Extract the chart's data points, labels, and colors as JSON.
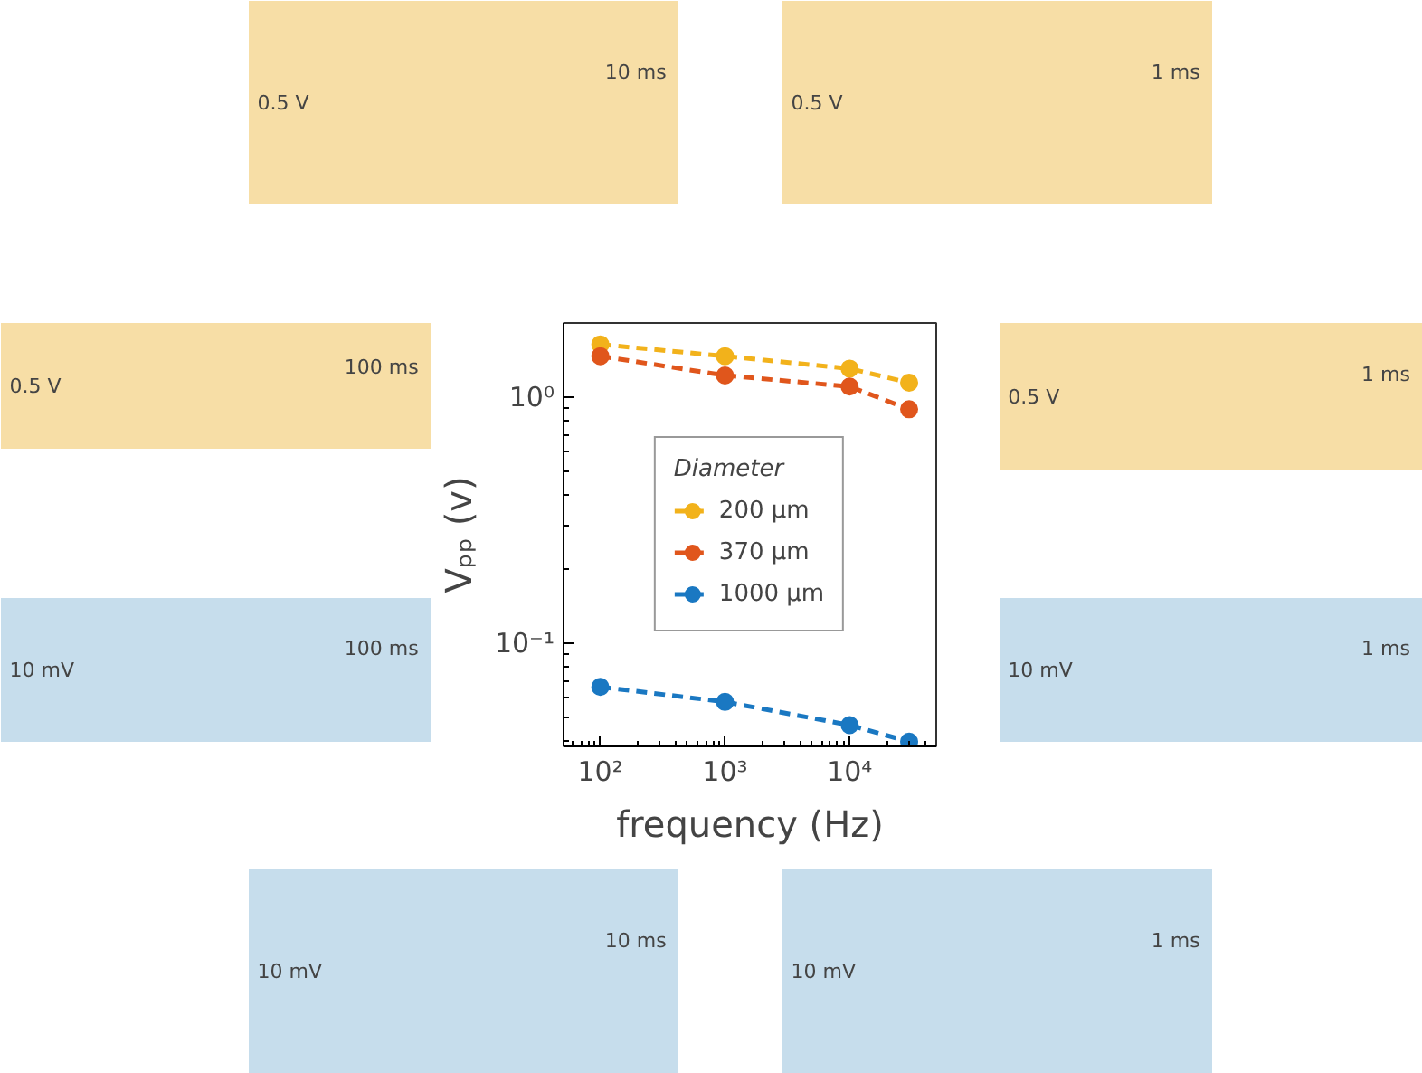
{
  "chart_data": {
    "type": "line",
    "xlabel": "frequency (Hz)",
    "ylabel": "Vₚₚ (v)",
    "legend_title": "Diameter",
    "x": [
      100,
      1000,
      10000,
      30000
    ],
    "log": "xy",
    "xlim": [
      50.7,
      49500
    ],
    "ylim": [
      0.0383,
      1.99
    ],
    "xticks": [
      {
        "value": 100,
        "label": "10²"
      },
      {
        "value": 1000,
        "label": "10³"
      },
      {
        "value": 10000,
        "label": "10⁴"
      }
    ],
    "yticks": [
      {
        "value": 0.1,
        "label": "10⁻¹"
      },
      {
        "value": 1,
        "label": "10⁰"
      }
    ],
    "marker": "circle",
    "line_style": "dashed",
    "grid": false,
    "legend": "center",
    "series": [
      {
        "name": "200 μm",
        "color": "#f2b21b",
        "values": [
          1.63,
          1.46,
          1.3,
          1.14
        ]
      },
      {
        "name": "370 μm",
        "color": "#e0561c",
        "values": [
          1.46,
          1.22,
          1.1,
          0.89
        ]
      },
      {
        "name": "1000 μm",
        "color": "#1a78c2",
        "values": [
          0.0667,
          0.058,
          0.0467,
          0.04
        ]
      }
    ],
    "annotations": [
      "0.5 V",
      "10 ms",
      "0.5 V",
      "1 ms",
      "0.5 V",
      "100 ms",
      "0.5 V",
      "1 ms",
      "10 mV",
      "100 ms",
      "10 mV",
      "1 ms",
      "10 mV",
      "10 ms",
      "10 mV",
      "1 ms"
    ]
  }
}
